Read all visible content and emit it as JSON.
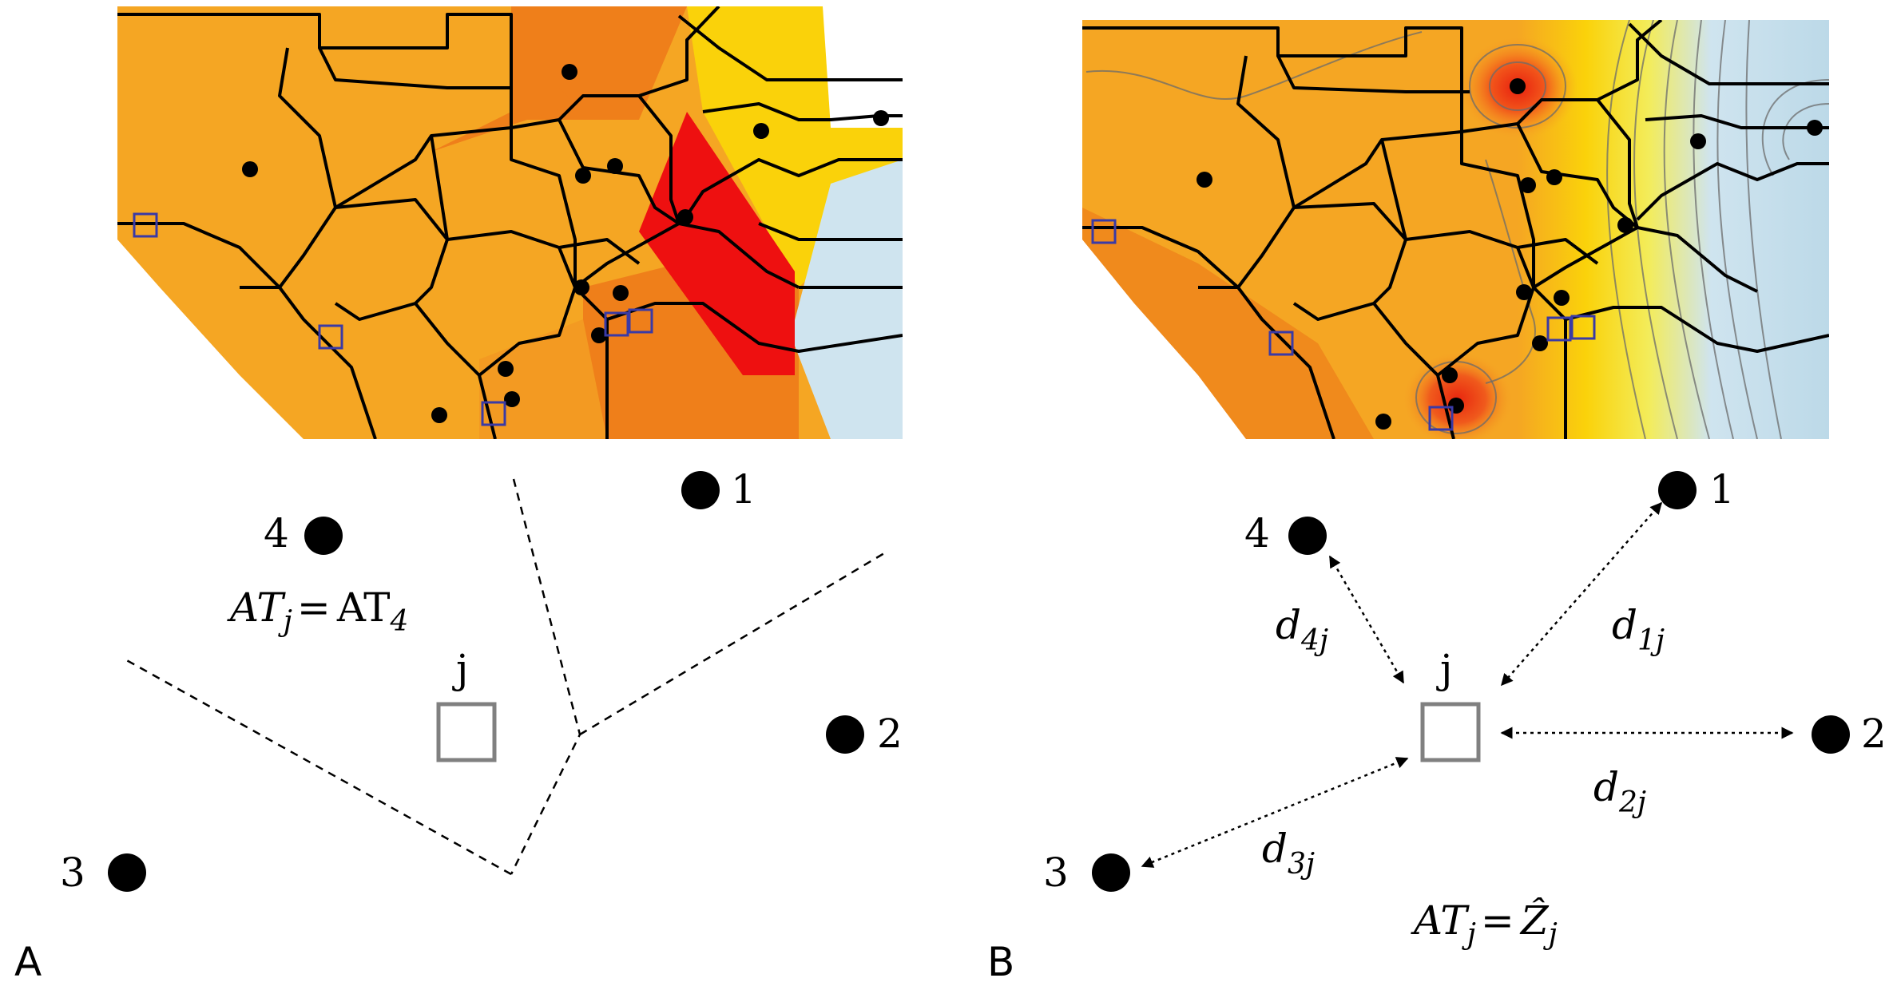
{
  "panels": [
    {
      "id": "A",
      "letter": "A",
      "method_formula": {
        "lhs": "AT",
        "lhs_sub": "j",
        "eq": "=",
        "rhs": "AT",
        "rhs_sub": "4"
      },
      "target_label": "j",
      "stations": [
        {
          "id": "1",
          "label": "1"
        },
        {
          "id": "2",
          "label": "2"
        },
        {
          "id": "3",
          "label": "3"
        },
        {
          "id": "4",
          "label": "4"
        }
      ]
    },
    {
      "id": "B",
      "letter": "B",
      "method_formula": {
        "lhs": "AT",
        "lhs_sub": "j",
        "eq": "=",
        "rhs": "Ẑ",
        "rhs_sub": "j"
      },
      "target_label": "j",
      "stations": [
        {
          "id": "1",
          "label": "1"
        },
        {
          "id": "2",
          "label": "2"
        },
        {
          "id": "3",
          "label": "3"
        },
        {
          "id": "4",
          "label": "4"
        }
      ],
      "distances": [
        {
          "base": "d",
          "sub": "1j"
        },
        {
          "base": "d",
          "sub": "2j"
        },
        {
          "base": "d",
          "sub": "3j"
        },
        {
          "base": "d",
          "sub": "4j"
        }
      ]
    }
  ],
  "colors": {
    "orange": "#f5a623",
    "dark_orange": "#f08a1c",
    "red": "#ee1010",
    "yellow": "#fad20a",
    "light_blue": "#cfe4ef",
    "site_outline": "#3a3aa6",
    "target_outline": "#808080"
  }
}
